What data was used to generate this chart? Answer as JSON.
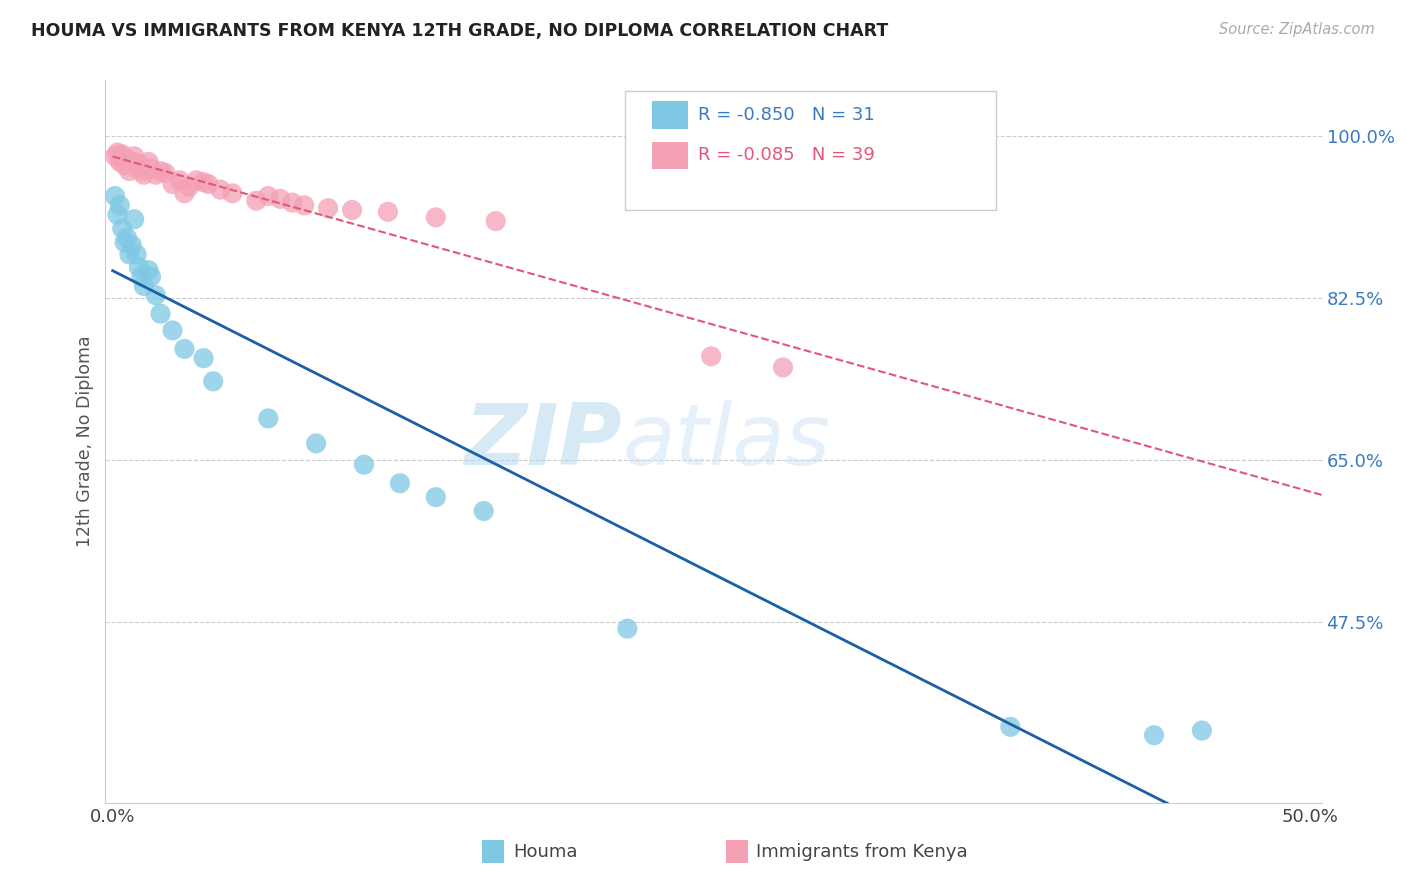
{
  "title": "HOUMA VS IMMIGRANTS FROM KENYA 12TH GRADE, NO DIPLOMA CORRELATION CHART",
  "source": "Source: ZipAtlas.com",
  "ylabel": "12th Grade, No Diploma",
  "xlim": [
    -0.003,
    0.505
  ],
  "ylim": [
    0.28,
    1.06
  ],
  "xtick_positions": [
    0.0,
    0.1,
    0.2,
    0.3,
    0.4,
    0.5
  ],
  "xtick_labels": [
    "0.0%",
    "",
    "",
    "",
    "",
    "50.0%"
  ],
  "ytick_positions": [
    0.475,
    0.65,
    0.825,
    1.0
  ],
  "ytick_labels": [
    "47.5%",
    "65.0%",
    "82.5%",
    "100.0%"
  ],
  "houma_color": "#7ec8e3",
  "kenya_color": "#f4a0b5",
  "houma_line_color": "#1a5fa8",
  "kenya_line_color": "#e05878",
  "watermark_zip": "ZIP",
  "watermark_atlas": "atlas",
  "houma_x": [
    0.001,
    0.002,
    0.003,
    0.004,
    0.005,
    0.006,
    0.007,
    0.008,
    0.009,
    0.01,
    0.011,
    0.012,
    0.013,
    0.015,
    0.016,
    0.018,
    0.02,
    0.025,
    0.03,
    0.038,
    0.042,
    0.065,
    0.085,
    0.105,
    0.12,
    0.135,
    0.155,
    0.215,
    0.375,
    0.435,
    0.455
  ],
  "houma_y": [
    0.935,
    0.915,
    0.925,
    0.9,
    0.885,
    0.89,
    0.872,
    0.882,
    0.91,
    0.872,
    0.858,
    0.848,
    0.838,
    0.855,
    0.848,
    0.828,
    0.808,
    0.79,
    0.77,
    0.76,
    0.735,
    0.695,
    0.668,
    0.645,
    0.625,
    0.61,
    0.595,
    0.468,
    0.362,
    0.353,
    0.358
  ],
  "kenya_x": [
    0.001,
    0.002,
    0.003,
    0.004,
    0.005,
    0.006,
    0.007,
    0.008,
    0.009,
    0.01,
    0.011,
    0.012,
    0.013,
    0.015,
    0.016,
    0.018,
    0.02,
    0.022,
    0.025,
    0.028,
    0.03,
    0.032,
    0.035,
    0.038,
    0.04,
    0.045,
    0.05,
    0.06,
    0.065,
    0.07,
    0.075,
    0.08,
    0.09,
    0.1,
    0.115,
    0.135,
    0.16,
    0.25,
    0.28
  ],
  "kenya_y": [
    0.978,
    0.982,
    0.972,
    0.98,
    0.968,
    0.975,
    0.962,
    0.972,
    0.978,
    0.965,
    0.97,
    0.962,
    0.958,
    0.972,
    0.965,
    0.958,
    0.962,
    0.96,
    0.948,
    0.952,
    0.938,
    0.945,
    0.952,
    0.95,
    0.948,
    0.942,
    0.938,
    0.93,
    0.935,
    0.932,
    0.928,
    0.925,
    0.922,
    0.92,
    0.918,
    0.912,
    0.908,
    0.762,
    0.75
  ]
}
